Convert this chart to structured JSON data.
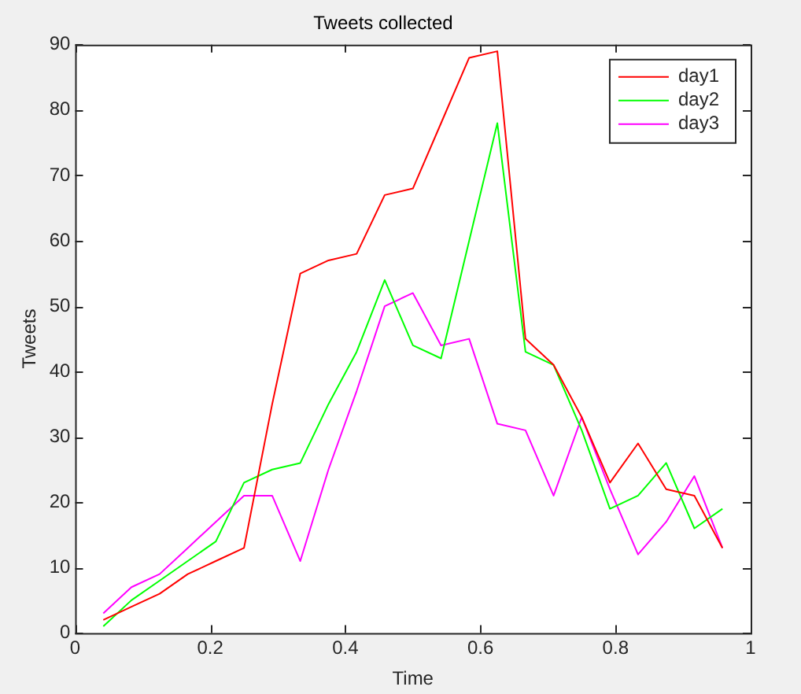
{
  "chart_data": {
    "type": "line",
    "title": "Tweets collected",
    "xlabel": "Time",
    "ylabel": "Tweets",
    "x": [
      0.0417,
      0.0833,
      0.125,
      0.1667,
      0.2083,
      0.25,
      0.2917,
      0.3333,
      0.375,
      0.4167,
      0.4583,
      0.5,
      0.5417,
      0.5833,
      0.625,
      0.6667,
      0.7083,
      0.75,
      0.7917,
      0.8333,
      0.875,
      0.9167,
      0.9583
    ],
    "series": [
      {
        "name": "day1",
        "color": "#ff0000",
        "values": [
          2,
          4,
          6,
          9,
          11,
          13,
          35,
          55,
          57,
          58,
          67,
          68,
          78,
          88,
          89,
          45,
          41,
          33,
          23,
          29,
          22,
          21,
          13
        ]
      },
      {
        "name": "day2",
        "color": "#00ff00",
        "values": [
          1,
          5,
          8,
          11,
          14,
          23,
          25,
          26,
          35,
          43,
          54,
          44,
          42,
          60,
          78,
          43,
          41,
          31,
          19,
          21,
          26,
          16,
          19
        ]
      },
      {
        "name": "day3",
        "color": "#ff00ff",
        "values": [
          3,
          7,
          9,
          13,
          17,
          21,
          21,
          11,
          25,
          37,
          50,
          52,
          44,
          45,
          32,
          31,
          21,
          33,
          22,
          12,
          17,
          24,
          13
        ]
      }
    ],
    "xlim": [
      0,
      1
    ],
    "xticks": [
      0,
      0.2,
      0.4,
      0.6,
      0.8,
      1
    ],
    "ylim": [
      0,
      90
    ],
    "yticks": [
      0,
      10,
      20,
      30,
      40,
      50,
      60,
      70,
      80,
      90
    ],
    "grid": false,
    "legend": "top right",
    "marker": "none",
    "line_style": "solid"
  }
}
